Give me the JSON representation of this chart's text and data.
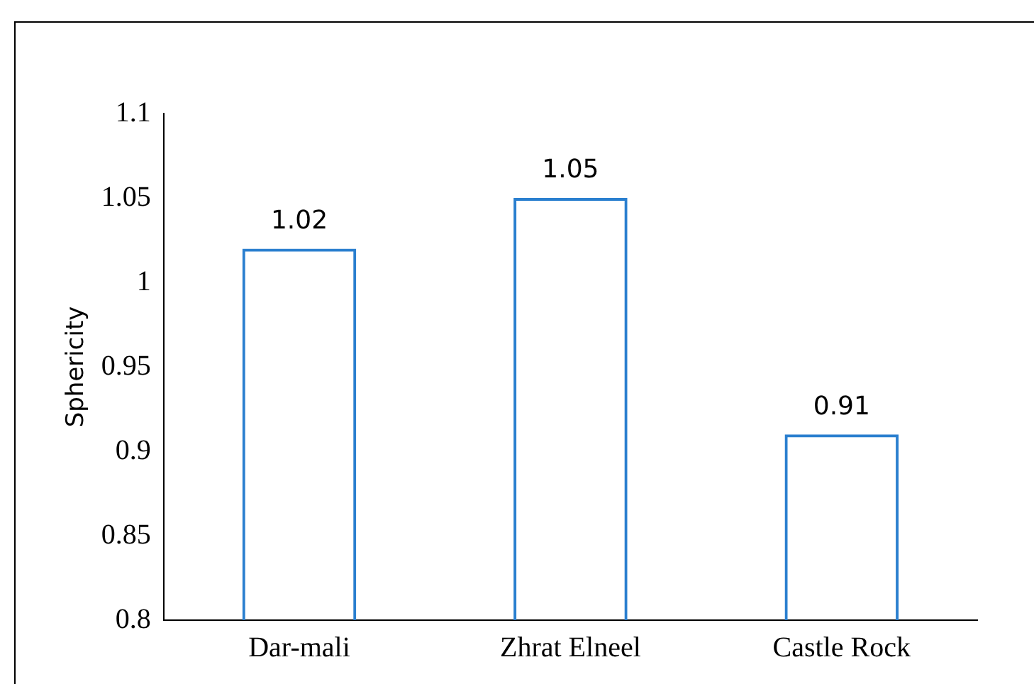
{
  "chart_data": {
    "type": "bar",
    "ylabel": "Sphericity",
    "categories": [
      "Dar-mali",
      "Zhrat Elneel",
      "Castle Rock"
    ],
    "values": [
      1.02,
      1.05,
      0.91
    ],
    "color": "#2a7fcf",
    "ylim": [
      0.8,
      1.1
    ],
    "yticks": [
      0.8,
      0.85,
      0.9,
      0.95,
      1,
      1.05,
      1.1
    ],
    "data_labels": true,
    "grid": false,
    "legend": false
  }
}
